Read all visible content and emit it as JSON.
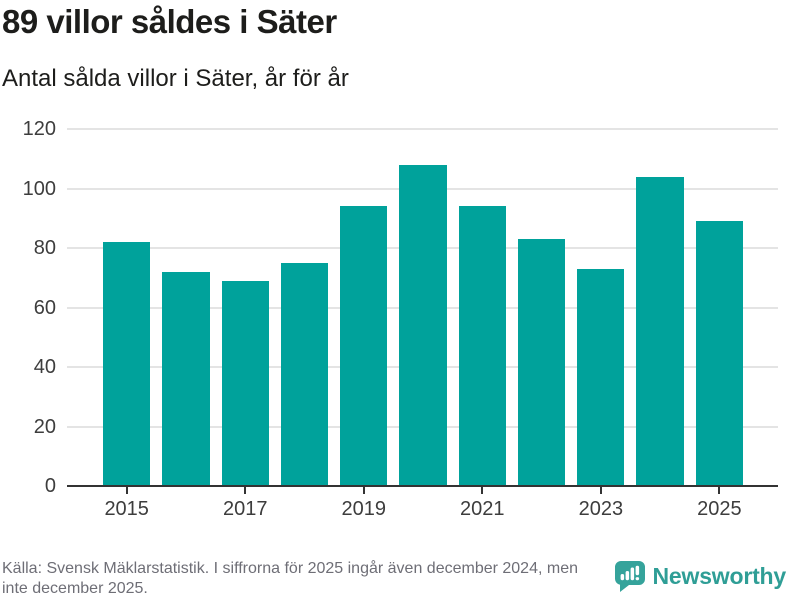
{
  "header": {
    "title": "89 villor såldes i Säter",
    "subtitle": "Antal sålda villor i Säter, år för år"
  },
  "chart_data": {
    "type": "bar",
    "title": "89 villor såldes i Säter",
    "subtitle": "Antal sålda villor i Säter, år för år",
    "categories": [
      "2015",
      "2016",
      "2017",
      "2018",
      "2019",
      "2020",
      "2021",
      "2022",
      "2023",
      "2024",
      "2025"
    ],
    "values": [
      82,
      72,
      69,
      75,
      94,
      108,
      94,
      83,
      73,
      104,
      89
    ],
    "xlabel": "",
    "ylabel": "",
    "ylim": [
      0,
      120
    ],
    "yticks": [
      0,
      20,
      40,
      60,
      80,
      100,
      120
    ],
    "xtick_labels": [
      "2015",
      "2017",
      "2019",
      "2021",
      "2023",
      "2025"
    ],
    "grid": true,
    "legend_position": "none",
    "bar_color": "#00a29b",
    "gridline_color": "#e4e4e4",
    "axis_color": "#333333",
    "tick_label_color": "#3d3d3d"
  },
  "footer": {
    "source_text": "Källa: Svensk Mäklarstatistik. I siffrorna för 2025 ingår även december 2024, men\ninte december 2025.",
    "brand_name": "Newsworthy",
    "brand_color": "#2f9e96",
    "logo_color": "#35a39b"
  }
}
